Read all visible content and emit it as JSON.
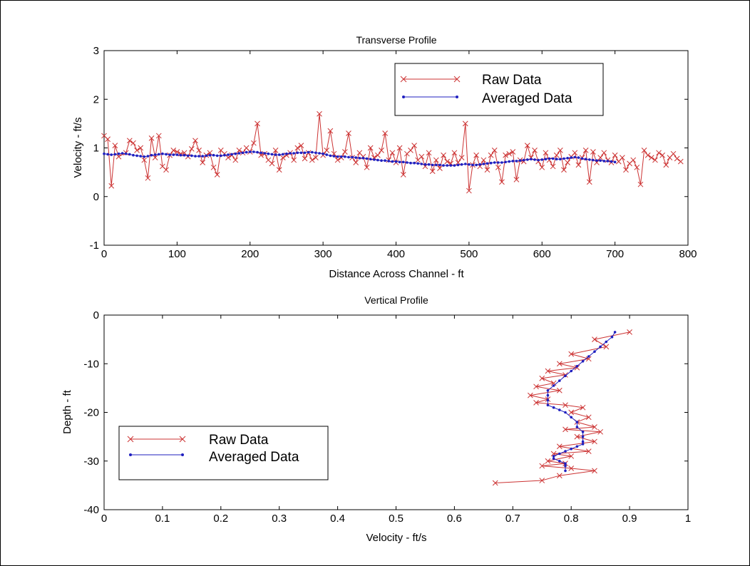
{
  "chart_data": [
    {
      "type": "line",
      "title": "Transverse Profile",
      "xlabel": "Distance Across Channel - ft",
      "ylabel": "Velocity - ft/s",
      "xlim": [
        0,
        800
      ],
      "ylim": [
        -1,
        3
      ],
      "xticks": [
        0,
        100,
        200,
        300,
        400,
        500,
        600,
        700,
        800
      ],
      "yticks": [
        -1,
        0,
        1,
        2,
        3
      ],
      "grid": false,
      "legend_position": "top-right",
      "series": [
        {
          "name": "Raw Data",
          "color": "#cc3333",
          "marker": "x",
          "x": [
            0,
            5,
            10,
            15,
            20,
            30,
            35,
            40,
            45,
            50,
            55,
            60,
            65,
            70,
            75,
            80,
            85,
            90,
            95,
            100,
            105,
            110,
            115,
            120,
            125,
            130,
            135,
            140,
            145,
            150,
            155,
            160,
            165,
            170,
            175,
            180,
            185,
            190,
            195,
            200,
            205,
            210,
            215,
            220,
            225,
            230,
            235,
            240,
            245,
            250,
            255,
            260,
            265,
            270,
            275,
            280,
            285,
            290,
            295,
            300,
            305,
            310,
            315,
            320,
            325,
            330,
            335,
            340,
            345,
            350,
            355,
            360,
            365,
            370,
            375,
            380,
            385,
            390,
            395,
            400,
            405,
            410,
            415,
            420,
            425,
            430,
            435,
            440,
            445,
            450,
            455,
            460,
            465,
            470,
            475,
            480,
            485,
            490,
            495,
            500,
            505,
            510,
            515,
            520,
            525,
            530,
            535,
            540,
            545,
            550,
            555,
            560,
            565,
            570,
            575,
            580,
            585,
            590,
            595,
            600,
            605,
            610,
            615,
            620,
            625,
            630,
            635,
            640,
            645,
            650,
            655,
            660,
            665,
            670,
            675,
            680,
            685,
            690,
            695,
            700,
            705,
            710,
            715,
            720,
            725,
            730,
            735,
            740,
            745,
            750,
            755,
            760,
            765,
            770,
            775,
            780,
            785,
            790
          ],
          "y": [
            1.25,
            1.18,
            0.22,
            1.05,
            0.82,
            0.9,
            1.15,
            1.1,
            0.95,
            1.0,
            0.75,
            0.38,
            1.2,
            0.8,
            1.25,
            0.62,
            0.55,
            0.85,
            0.95,
            0.92,
            0.88,
            0.9,
            0.82,
            0.98,
            1.15,
            0.95,
            0.7,
            0.85,
            0.9,
            0.6,
            0.45,
            0.95,
            0.88,
            0.8,
            0.85,
            0.75,
            0.95,
            0.9,
            1.0,
            0.92,
            1.1,
            1.5,
            0.85,
            0.88,
            0.75,
            0.68,
            0.95,
            0.55,
            0.8,
            0.85,
            0.9,
            0.75,
            1.0,
            1.05,
            0.78,
            0.9,
            0.75,
            0.8,
            1.7,
            0.85,
            0.95,
            1.35,
            0.88,
            0.75,
            0.8,
            0.92,
            1.3,
            0.8,
            0.7,
            0.9,
            0.82,
            0.6,
            1.0,
            0.8,
            0.85,
            0.95,
            1.3,
            0.75,
            0.9,
            0.7,
            1.0,
            0.45,
            0.88,
            0.95,
            1.05,
            0.75,
            0.82,
            0.62,
            0.9,
            0.52,
            0.75,
            0.58,
            0.85,
            0.72,
            0.68,
            0.9,
            0.7,
            0.8,
            1.5,
            0.12,
            0.65,
            0.85,
            0.62,
            0.75,
            0.55,
            0.85,
            0.95,
            0.6,
            0.3,
            0.85,
            0.88,
            0.92,
            0.35,
            0.75,
            0.72,
            1.05,
            0.8,
            0.95,
            0.72,
            0.6,
            0.9,
            0.75,
            0.62,
            0.85,
            0.95,
            0.55,
            0.7,
            0.82,
            0.9,
            0.65,
            0.8,
            0.95,
            0.3,
            0.92,
            0.7,
            0.8,
            0.9,
            0.75,
            0.7,
            0.85,
            0.72,
            0.8,
            0.55,
            0.68,
            0.75,
            0.6,
            0.25,
            0.95,
            0.85,
            0.8,
            0.75,
            0.9,
            0.85,
            0.65,
            0.8,
            0.88,
            0.78,
            0.72
          ]
        },
        {
          "name": "Averaged Data",
          "color": "#1f1fbf",
          "marker": "dot",
          "x": [
            0,
            5,
            10,
            15,
            20,
            25,
            30,
            35,
            40,
            45,
            50,
            55,
            60,
            65,
            70,
            75,
            80,
            85,
            90,
            95,
            100,
            105,
            110,
            115,
            120,
            125,
            130,
            135,
            140,
            145,
            150,
            155,
            160,
            165,
            170,
            175,
            180,
            185,
            190,
            195,
            200,
            205,
            210,
            215,
            220,
            225,
            230,
            235,
            240,
            245,
            250,
            255,
            260,
            265,
            270,
            275,
            280,
            285,
            290,
            295,
            300,
            305,
            310,
            315,
            320,
            325,
            330,
            335,
            340,
            345,
            350,
            355,
            360,
            365,
            370,
            375,
            380,
            385,
            390,
            395,
            400,
            405,
            410,
            415,
            420,
            425,
            430,
            435,
            440,
            445,
            450,
            455,
            460,
            465,
            470,
            475,
            480,
            485,
            490,
            495,
            500,
            505,
            510,
            515,
            520,
            525,
            530,
            535,
            540,
            545,
            550,
            555,
            560,
            565,
            570,
            575,
            580,
            585,
            590,
            595,
            600,
            605,
            610,
            615,
            620,
            625,
            630,
            635,
            640,
            645,
            650,
            655,
            660,
            665,
            670,
            675,
            680,
            685,
            690,
            695,
            700
          ],
          "y": [
            0.88,
            0.87,
            0.86,
            0.87,
            0.88,
            0.89,
            0.88,
            0.87,
            0.85,
            0.84,
            0.83,
            0.82,
            0.83,
            0.85,
            0.86,
            0.87,
            0.88,
            0.87,
            0.86,
            0.86,
            0.86,
            0.85,
            0.85,
            0.84,
            0.84,
            0.83,
            0.83,
            0.83,
            0.84,
            0.85,
            0.85,
            0.84,
            0.84,
            0.85,
            0.86,
            0.87,
            0.88,
            0.89,
            0.9,
            0.91,
            0.92,
            0.92,
            0.91,
            0.9,
            0.89,
            0.88,
            0.87,
            0.86,
            0.86,
            0.87,
            0.88,
            0.89,
            0.89,
            0.9,
            0.9,
            0.9,
            0.91,
            0.91,
            0.9,
            0.89,
            0.88,
            0.86,
            0.84,
            0.83,
            0.82,
            0.82,
            0.82,
            0.81,
            0.81,
            0.8,
            0.79,
            0.79,
            0.78,
            0.77,
            0.76,
            0.75,
            0.74,
            0.74,
            0.73,
            0.72,
            0.72,
            0.71,
            0.71,
            0.7,
            0.69,
            0.69,
            0.68,
            0.67,
            0.66,
            0.66,
            0.65,
            0.65,
            0.65,
            0.64,
            0.64,
            0.64,
            0.64,
            0.65,
            0.66,
            0.67,
            0.66,
            0.65,
            0.65,
            0.66,
            0.67,
            0.68,
            0.69,
            0.7,
            0.7,
            0.7,
            0.71,
            0.72,
            0.73,
            0.73,
            0.74,
            0.75,
            0.76,
            0.77,
            0.76,
            0.75,
            0.76,
            0.77,
            0.78,
            0.78,
            0.77,
            0.77,
            0.78,
            0.79,
            0.8,
            0.81,
            0.8,
            0.78,
            0.77,
            0.76,
            0.75,
            0.74,
            0.74,
            0.73,
            0.73,
            0.72,
            0.71
          ]
        }
      ]
    },
    {
      "type": "line",
      "title": "Vertical Profile",
      "xlabel": "Velocity - ft/s",
      "ylabel": "Depth - ft",
      "xlim": [
        0,
        1
      ],
      "ylim": [
        -40,
        0
      ],
      "xticks": [
        0,
        0.1,
        0.2,
        0.3,
        0.4,
        0.5,
        0.6,
        0.7,
        0.8,
        0.9,
        1
      ],
      "yticks": [
        -40,
        -30,
        -20,
        -10,
        0
      ],
      "grid": false,
      "legend_position": "bottom-left",
      "series": [
        {
          "name": "Raw Data",
          "color": "#cc3333",
          "marker": "x",
          "x": [
            0.9,
            0.84,
            0.86,
            0.8,
            0.83,
            0.78,
            0.81,
            0.76,
            0.79,
            0.75,
            0.77,
            0.74,
            0.78,
            0.73,
            0.76,
            0.74,
            0.79,
            0.82,
            0.8,
            0.83,
            0.81,
            0.84,
            0.79,
            0.85,
            0.81,
            0.84,
            0.78,
            0.83,
            0.77,
            0.8,
            0.76,
            0.79,
            0.75,
            0.8,
            0.84,
            0.78,
            0.75,
            0.67
          ],
          "y": [
            -3.5,
            -5,
            -6.5,
            -8,
            -9,
            -10,
            -10.8,
            -11.5,
            -12.3,
            -13,
            -14,
            -14.7,
            -15.5,
            -16.5,
            -17.3,
            -18,
            -18.5,
            -19,
            -20,
            -21,
            -22,
            -23,
            -23.5,
            -24,
            -25,
            -26,
            -27,
            -28,
            -28.5,
            -29,
            -30,
            -30.5,
            -31,
            -31.5,
            -32,
            -33,
            -34,
            -34.5
          ]
        },
        {
          "name": "Averaged Data",
          "color": "#1f1fbf",
          "marker": "dot",
          "x": [
            0.875,
            0.87,
            0.86,
            0.85,
            0.84,
            0.83,
            0.82,
            0.81,
            0.8,
            0.79,
            0.78,
            0.77,
            0.76,
            0.76,
            0.76,
            0.76,
            0.77,
            0.78,
            0.79,
            0.8,
            0.81,
            0.81,
            0.82,
            0.82,
            0.82,
            0.82,
            0.81,
            0.8,
            0.79,
            0.78,
            0.77,
            0.77,
            0.78,
            0.79,
            0.79,
            0.79
          ],
          "y": [
            -3.5,
            -4.5,
            -5.5,
            -6.5,
            -7.5,
            -8.5,
            -9.5,
            -10.5,
            -11.5,
            -12.5,
            -13.5,
            -14.5,
            -15.5,
            -16.5,
            -17.5,
            -18.5,
            -19,
            -19.5,
            -20,
            -21,
            -22,
            -23,
            -24,
            -25,
            -26,
            -26.5,
            -27,
            -27.5,
            -28,
            -28.5,
            -29,
            -29.5,
            -30,
            -30.5,
            -31,
            -32
          ]
        }
      ]
    }
  ]
}
